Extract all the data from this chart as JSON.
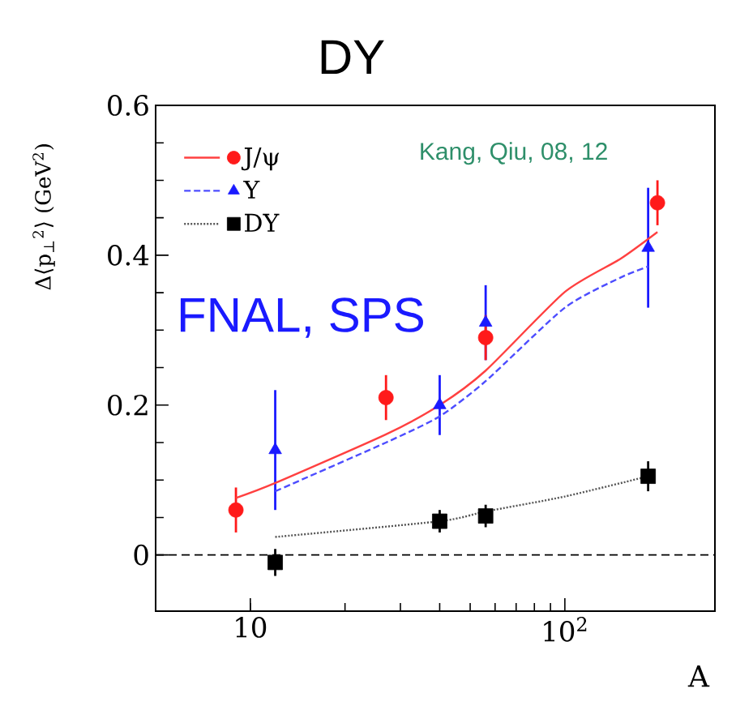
{
  "chart_data": {
    "type": "scatter",
    "title": "DY",
    "xlabel": "A",
    "ylabel": "Δ⟨p$_{⊥}$$^{2}$⟩ (GeV$^{2}$)",
    "log": "x",
    "xlim": [
      5,
      300
    ],
    "ylim": [
      -0.075,
      0.6
    ],
    "xticks": [
      {
        "value": 10,
        "label": "10"
      },
      {
        "value": 100,
        "label": "10$^{2}$"
      }
    ],
    "yticks": [
      0,
      0.2,
      0.4,
      0.6
    ],
    "legend": "top left",
    "annotations": [
      "Kang, Qiu, 08, 12",
      "FNAL, SPS"
    ],
    "ref_lines": [
      {
        "axis": "y",
        "value": 0,
        "color": "#000000",
        "line_style": "dashed"
      }
    ],
    "series": [
      {
        "name": "J/ψ",
        "color": "#ff1a1a",
        "marker": "circle",
        "x": [
          9,
          27,
          56,
          197
        ],
        "values": [
          0.06,
          0.21,
          0.29,
          0.47
        ],
        "errors": [
          0.03,
          0.03,
          0.03,
          0.03
        ]
      },
      {
        "name": "Υ",
        "color": "#1a1aff",
        "marker": "triangle",
        "x": [
          12,
          40,
          56,
          184
        ],
        "values": [
          0.14,
          0.2,
          0.31,
          0.41
        ],
        "errors": [
          0.08,
          0.04,
          0.05,
          0.08
        ]
      },
      {
        "name": "DY",
        "color": "#000000",
        "marker": "square",
        "x": [
          12,
          40,
          56,
          184
        ],
        "values": [
          -0.01,
          0.045,
          0.052,
          0.105
        ],
        "errors": [
          0.018,
          0.015,
          0.015,
          0.02
        ]
      },
      {
        "type": "line",
        "color": "#ff4040",
        "line_style": "solid",
        "x": [
          9,
          12,
          27,
          40,
          56,
          100,
          150,
          197
        ],
        "values": [
          0.076,
          0.096,
          0.161,
          0.2,
          0.246,
          0.351,
          0.395,
          0.431
        ]
      },
      {
        "type": "line",
        "color": "#4d4dff",
        "line_style": "dashed",
        "x": [
          12,
          27,
          40,
          56,
          100,
          150,
          184
        ],
        "values": [
          0.085,
          0.15,
          0.185,
          0.232,
          0.33,
          0.37,
          0.385
        ]
      },
      {
        "type": "line",
        "color": "#555555",
        "line_style": "dotted",
        "x": [
          12,
          40,
          56,
          100,
          184
        ],
        "values": [
          0.024,
          0.045,
          0.058,
          0.078,
          0.105
        ]
      }
    ]
  }
}
